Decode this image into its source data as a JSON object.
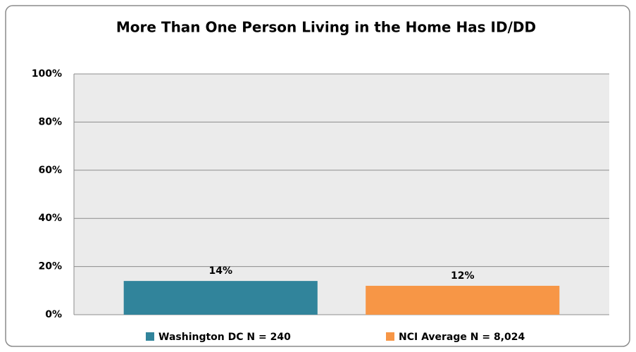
{
  "chart_data": {
    "type": "bar",
    "title": "More Than One Person Living in the Home Has ID/DD",
    "categories": [
      null
    ],
    "series": [
      {
        "name": "Washington DC N = 240",
        "color": "#31849b",
        "values": [
          14
        ],
        "value_labels": [
          "14%"
        ]
      },
      {
        "name": "NCI Average N = 8,024",
        "color": "#f79646",
        "values": [
          12
        ],
        "value_labels": [
          "12%"
        ]
      }
    ],
    "ylim": [
      0,
      100
    ],
    "yticks": [
      {
        "value": 0,
        "label": "0%"
      },
      {
        "value": 20,
        "label": "20%"
      },
      {
        "value": 40,
        "label": "40%"
      },
      {
        "value": 60,
        "label": "60%"
      },
      {
        "value": 80,
        "label": "80%"
      },
      {
        "value": 100,
        "label": "100%"
      }
    ],
    "grid": true,
    "legend": "bottom"
  }
}
